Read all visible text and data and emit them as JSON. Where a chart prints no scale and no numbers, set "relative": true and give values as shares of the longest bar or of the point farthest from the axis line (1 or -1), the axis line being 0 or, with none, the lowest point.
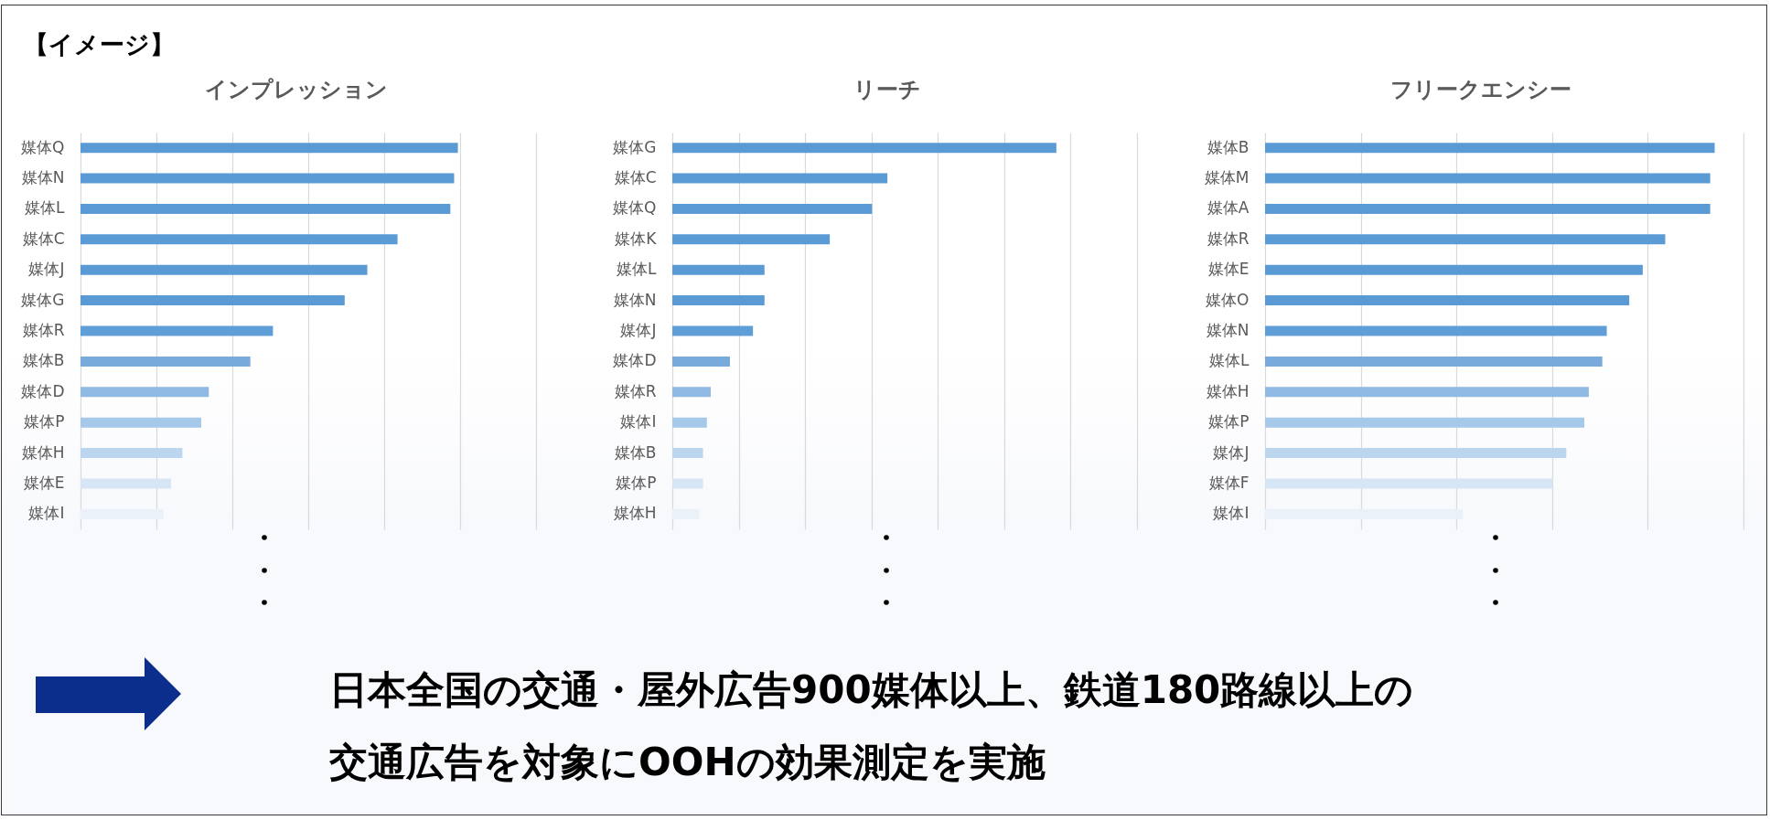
{
  "chart_data": [
    {
      "type": "other",
      "title": "【イメージ】"
    },
    {
      "type": "bar",
      "title": "インプレッション",
      "orientation": "horizontal",
      "relative": true,
      "grid": "x",
      "categories": [
        "媒体Q",
        "媒体N",
        "媒体L",
        "媒体C",
        "媒体J",
        "媒体G",
        "媒体R",
        "媒体B",
        "媒体D",
        "媒体P",
        "媒体H",
        "媒体E",
        "媒体I"
      ],
      "values": [
        1,
        0.99,
        0.98,
        0.84,
        0.76,
        0.7,
        0.51,
        0.45,
        0.34,
        0.32,
        0.27,
        0.24,
        0.22
      ],
      "colors": [
        "#5b9bd5",
        "#5b9bd5",
        "#5b9bd5",
        "#5b9bd5",
        "#5b9bd5",
        "#5b9bd5",
        "#5f9ed6",
        "#78aadc",
        "#8fb9e3",
        "#a6c8e9",
        "#bdd6ef",
        "#d6e6f5",
        "#eaf1f9"
      ]
    },
    {
      "type": "bar",
      "title": "リーチ",
      "orientation": "horizontal",
      "relative": true,
      "grid": "x",
      "categories": [
        "媒体G",
        "媒体C",
        "媒体Q",
        "媒体K",
        "媒体L",
        "媒体N",
        "媒体J",
        "媒体D",
        "媒体R",
        "媒体I",
        "媒体B",
        "媒体P",
        "媒体H"
      ],
      "values": [
        1,
        0.56,
        0.52,
        0.41,
        0.24,
        0.24,
        0.21,
        0.15,
        0.1,
        0.09,
        0.08,
        0.08,
        0.07
      ],
      "colors": [
        "#5b9bd5",
        "#5b9bd5",
        "#5b9bd5",
        "#5b9bd5",
        "#5b9bd5",
        "#5b9bd5",
        "#5f9ed6",
        "#78aadc",
        "#8fb9e3",
        "#a6c8e9",
        "#bdd6ef",
        "#d6e6f5",
        "#eaf1f9"
      ]
    },
    {
      "type": "bar",
      "title": "フリークエンシー",
      "orientation": "horizontal",
      "relative": true,
      "grid": "x",
      "categories": [
        "媒体B",
        "媒体M",
        "媒体A",
        "媒体R",
        "媒体E",
        "媒体O",
        "媒体N",
        "媒体L",
        "媒体H",
        "媒体P",
        "媒体J",
        "媒体F",
        "媒体I"
      ],
      "values": [
        1,
        0.99,
        0.99,
        0.89,
        0.84,
        0.81,
        0.76,
        0.75,
        0.72,
        0.71,
        0.67,
        0.64,
        0.44
      ],
      "colors": [
        "#5b9bd5",
        "#5b9bd5",
        "#5b9bd5",
        "#5b9bd5",
        "#5b9bd5",
        "#5b9bd5",
        "#5f9ed6",
        "#78aadc",
        "#8fb9e3",
        "#a6c8e9",
        "#bdd6ef",
        "#d6e6f5",
        "#eaf1f9"
      ]
    },
    {
      "type": "other",
      "annotations": [
        "日本全国の交通・屋外広告900媒体以上、鉄道180路線以上の",
        "交通広告を対象にOOHの効果測定を実施"
      ]
    }
  ]
}
